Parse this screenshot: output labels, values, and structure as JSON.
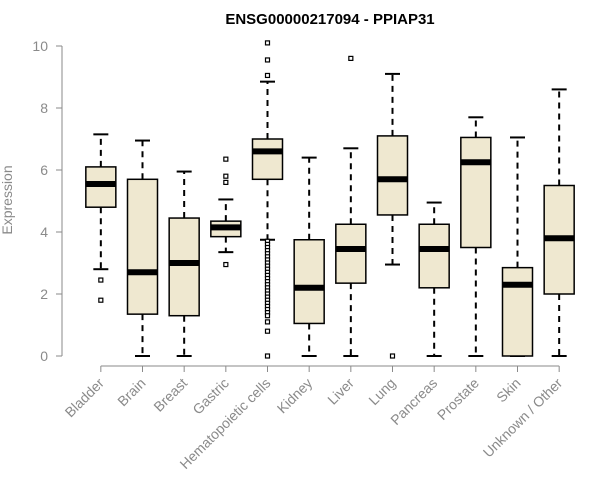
{
  "chart_data": {
    "type": "boxplot",
    "title": "ENSG00000217094 - PPIAP31",
    "xlabel": "",
    "ylabel": "Expression",
    "ylim": [
      0,
      10
    ],
    "yticks": [
      0,
      2,
      4,
      6,
      8,
      10
    ],
    "grid": false,
    "legend": "none",
    "colors": {
      "box_fill": "#efe8d0",
      "stroke": "#000000",
      "axis": "#8a8a8a"
    },
    "categories": [
      "Bladder",
      "Brain",
      "Breast",
      "Gastric",
      "Hematopoietic cells",
      "Kidney",
      "Liver",
      "Lung",
      "Pancreas",
      "Prostate",
      "Skin",
      "Unknown / Other"
    ],
    "boxes": [
      {
        "name": "Bladder",
        "whisker_low": 2.8,
        "q1": 4.8,
        "median": 5.55,
        "q3": 6.1,
        "whisker_high": 7.15,
        "outliers": [
          2.45,
          1.8
        ]
      },
      {
        "name": "Brain",
        "whisker_low": 0.0,
        "q1": 1.35,
        "median": 2.7,
        "q3": 5.7,
        "whisker_high": 6.95,
        "outliers": []
      },
      {
        "name": "Breast",
        "whisker_low": 0.0,
        "q1": 1.3,
        "median": 3.0,
        "q3": 4.45,
        "whisker_high": 5.95,
        "outliers": []
      },
      {
        "name": "Gastric",
        "whisker_low": 3.35,
        "q1": 3.85,
        "median": 4.15,
        "q3": 4.35,
        "whisker_high": 5.05,
        "outliers": [
          6.35,
          5.8,
          5.6,
          2.95
        ]
      },
      {
        "name": "Hematopoietic cells",
        "whisker_low": 3.75,
        "q1": 5.7,
        "median": 6.6,
        "q3": 7.0,
        "whisker_high": 8.85,
        "outliers": [
          10.1,
          9.55,
          9.05,
          3.7,
          3.6,
          3.5,
          3.4,
          3.3,
          3.2,
          3.1,
          3.0,
          2.9,
          2.8,
          2.7,
          2.6,
          2.5,
          2.4,
          2.3,
          2.2,
          2.1,
          2.0,
          1.9,
          1.8,
          1.7,
          1.6,
          1.5,
          1.4,
          1.3,
          1.1,
          0.8,
          0.0
        ]
      },
      {
        "name": "Kidney",
        "whisker_low": 0.0,
        "q1": 1.05,
        "median": 2.2,
        "q3": 3.75,
        "whisker_high": 6.4,
        "outliers": []
      },
      {
        "name": "Liver",
        "whisker_low": 0.0,
        "q1": 2.35,
        "median": 3.45,
        "q3": 4.25,
        "whisker_high": 6.7,
        "outliers": [
          9.6
        ]
      },
      {
        "name": "Lung",
        "whisker_low": 2.95,
        "q1": 4.55,
        "median": 5.7,
        "q3": 7.1,
        "whisker_high": 9.1,
        "outliers": [
          0.0
        ]
      },
      {
        "name": "Pancreas",
        "whisker_low": 0.0,
        "q1": 2.2,
        "median": 3.45,
        "q3": 4.25,
        "whisker_high": 4.95,
        "outliers": []
      },
      {
        "name": "Prostate",
        "whisker_low": 0.0,
        "q1": 3.5,
        "median": 6.25,
        "q3": 7.05,
        "whisker_high": 7.7,
        "outliers": []
      },
      {
        "name": "Skin",
        "whisker_low": 0.0,
        "q1": 0.0,
        "median": 2.3,
        "q3": 2.85,
        "whisker_high": 7.05,
        "outliers": []
      },
      {
        "name": "Unknown / Other",
        "whisker_low": 0.0,
        "q1": 2.0,
        "median": 3.8,
        "q3": 5.5,
        "whisker_high": 8.6,
        "outliers": []
      }
    ]
  }
}
